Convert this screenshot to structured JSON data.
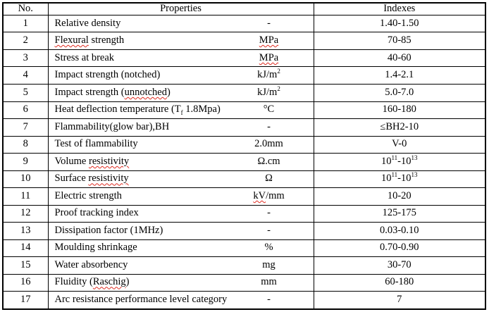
{
  "colors": {
    "border": "#000000",
    "text": "#000000",
    "background": "#ffffff",
    "squiggle": "#e02b20"
  },
  "table": {
    "columns": {
      "no": "No.",
      "properties": "Properties",
      "indexes": "Indexes"
    },
    "rows": [
      {
        "no": "1",
        "name": [
          {
            "t": "Relative density"
          }
        ],
        "unit": [
          {
            "t": "-"
          }
        ],
        "index": [
          {
            "t": "1.40-1.50"
          }
        ]
      },
      {
        "no": "2",
        "name": [
          {
            "t": "Flexural",
            "squiggle": true
          },
          {
            "t": " strength"
          }
        ],
        "unit": [
          {
            "t": "MPa",
            "squiggle": true
          }
        ],
        "index": [
          {
            "t": "70-85"
          }
        ]
      },
      {
        "no": "3",
        "name": [
          {
            "t": "Stress at break"
          }
        ],
        "unit": [
          {
            "t": "MPa",
            "squiggle": true
          }
        ],
        "index": [
          {
            "t": "40-60"
          }
        ]
      },
      {
        "no": "4",
        "name": [
          {
            "t": "Impact strength (notched)"
          }
        ],
        "unit": [
          {
            "t": "kJ/m"
          },
          {
            "t": "2",
            "sup": true
          }
        ],
        "index": [
          {
            "t": "1.4-2.1"
          }
        ]
      },
      {
        "no": "5",
        "name": [
          {
            "t": "Impact strength ("
          },
          {
            "t": "unnotched",
            "squiggle": true
          },
          {
            "t": ")"
          }
        ],
        "unit": [
          {
            "t": "kJ/m"
          },
          {
            "t": "2",
            "sup": true
          }
        ],
        "index": [
          {
            "t": "5.0-7.0"
          }
        ]
      },
      {
        "no": "6",
        "name": [
          {
            "t": "Heat deflection temperature (T"
          },
          {
            "t": "f",
            "sub": true,
            "squiggle": true
          },
          {
            "t": " 1.8Mpa)"
          }
        ],
        "unit": [
          {
            "t": "°C"
          }
        ],
        "index": [
          {
            "t": "160-180"
          }
        ]
      },
      {
        "no": "7",
        "name": [
          {
            "t": "Flammability(glow bar),BH"
          }
        ],
        "unit": [
          {
            "t": "-"
          }
        ],
        "index": [
          {
            "t": "≤BH2-10"
          }
        ]
      },
      {
        "no": "8",
        "name": [
          {
            "t": "Test of flammability"
          }
        ],
        "unit": [
          {
            "t": "2.0mm"
          }
        ],
        "index": [
          {
            "t": "V-0"
          }
        ]
      },
      {
        "no": "9",
        "name": [
          {
            "t": "Volume "
          },
          {
            "t": "resistivity",
            "squiggle": true
          }
        ],
        "unit": [
          {
            "t": "Ω.cm"
          }
        ],
        "index": [
          {
            "t": "10"
          },
          {
            "t": "11",
            "sup": true
          },
          {
            "t": "-10"
          },
          {
            "t": "13",
            "sup": true
          }
        ]
      },
      {
        "no": "10",
        "name": [
          {
            "t": "Surface "
          },
          {
            "t": "resistivity",
            "squiggle": true
          }
        ],
        "unit": [
          {
            "t": "Ω"
          }
        ],
        "index": [
          {
            "t": "10"
          },
          {
            "t": "11",
            "sup": true
          },
          {
            "t": "-10"
          },
          {
            "t": "13",
            "sup": true
          }
        ]
      },
      {
        "no": "11",
        "name": [
          {
            "t": "Electric strength"
          }
        ],
        "unit": [
          {
            "t": "kV",
            "squiggle": true
          },
          {
            "t": "/mm"
          }
        ],
        "index": [
          {
            "t": "10-20"
          }
        ]
      },
      {
        "no": "12",
        "name": [
          {
            "t": "Proof tracking index"
          }
        ],
        "unit": [
          {
            "t": "-"
          }
        ],
        "index": [
          {
            "t": "125-175"
          }
        ]
      },
      {
        "no": "13",
        "name": [
          {
            "t": "Dissipation factor (1MHz)"
          }
        ],
        "unit": [
          {
            "t": "-"
          }
        ],
        "index": [
          {
            "t": "0.03-0.10"
          }
        ]
      },
      {
        "no": "14",
        "name": [
          {
            "t": "Moulding shrinkage"
          }
        ],
        "unit": [
          {
            "t": "%"
          }
        ],
        "index": [
          {
            "t": "0.70-0.90"
          }
        ]
      },
      {
        "no": "15",
        "name": [
          {
            "t": "Water absorbency"
          }
        ],
        "unit": [
          {
            "t": "mg"
          }
        ],
        "index": [
          {
            "t": "30-70"
          }
        ]
      },
      {
        "no": "16",
        "name": [
          {
            "t": "Fluidity ("
          },
          {
            "t": "Raschig",
            "squiggle": true
          },
          {
            "t": ")"
          }
        ],
        "unit": [
          {
            "t": "mm"
          }
        ],
        "index": [
          {
            "t": "60-180"
          }
        ]
      },
      {
        "no": "17",
        "name": [
          {
            "t": "Arc resistance performance level category"
          }
        ],
        "unit": [
          {
            "t": "-"
          }
        ],
        "index": [
          {
            "t": "7"
          }
        ]
      }
    ]
  }
}
